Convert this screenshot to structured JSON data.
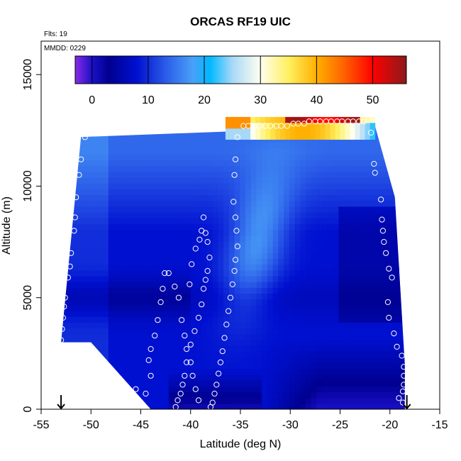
{
  "chart_data": {
    "type": "heatmap",
    "title": "ORCAS RF19 UIC",
    "flights_label": "Flts: 19",
    "date_label": "MMDD: 0229",
    "xlabel": "Latitude (deg N)",
    "ylabel": "Altitude (m)",
    "xlim": [
      -55,
      -15
    ],
    "ylim": [
      0,
      16500
    ],
    "x_ticks": [
      -55,
      -50,
      -45,
      -40,
      -35,
      -30,
      -25,
      -20,
      -15
    ],
    "y_ticks": [
      0,
      5000,
      10000,
      15000
    ],
    "colorbar": {
      "range": [
        -3,
        56
      ],
      "ticks": [
        0,
        10,
        20,
        30,
        40,
        50
      ],
      "stops": [
        {
          "v": -3,
          "c": "#8a2be2"
        },
        {
          "v": 0,
          "c": "#1a10c8"
        },
        {
          "v": 3,
          "c": "#000090"
        },
        {
          "v": 8,
          "c": "#0010d0"
        },
        {
          "v": 13,
          "c": "#2a5ae8"
        },
        {
          "v": 18,
          "c": "#4aa0f8"
        },
        {
          "v": 21,
          "c": "#00b8ff"
        },
        {
          "v": 25,
          "c": "#a8d8f8"
        },
        {
          "v": 30,
          "c": "#fffff0"
        },
        {
          "v": 35,
          "c": "#fff060"
        },
        {
          "v": 40,
          "c": "#ffb000"
        },
        {
          "v": 45,
          "c": "#ff6000"
        },
        {
          "v": 50,
          "c": "#ff0000"
        },
        {
          "v": 56,
          "c": "#8b1a1a"
        }
      ]
    },
    "field_outline": [
      [
        -53.0,
        3000
      ],
      [
        -51.0,
        12200
      ],
      [
        -21.5,
        12700
      ],
      [
        -19.5,
        9500
      ],
      [
        -18.5,
        2000
      ],
      [
        -18.5,
        0
      ],
      [
        -44.0,
        0
      ],
      [
        -50.0,
        3000
      ]
    ],
    "hot_layer": {
      "lat_range": [
        -36.5,
        -21.5
      ],
      "alt_range": [
        12100,
        13000
      ]
    },
    "profile_points": [
      {
        "name": "profile-52",
        "points": [
          [
            -53.0,
            3100
          ],
          [
            -52.9,
            3600
          ],
          [
            -52.8,
            4100
          ],
          [
            -52.7,
            4600
          ],
          [
            -52.6,
            5000
          ],
          [
            -52.3,
            5900
          ],
          [
            -52.1,
            6400
          ],
          [
            -52.0,
            7000
          ],
          [
            -51.7,
            8000
          ],
          [
            -51.6,
            8600
          ],
          [
            -51.5,
            9500
          ],
          [
            -51.2,
            10500
          ],
          [
            -51.0,
            11200
          ],
          [
            -50.6,
            12200
          ]
        ]
      },
      {
        "name": "profile-42",
        "points": [
          [
            -45.5,
            900
          ],
          [
            -45.2,
            300
          ],
          [
            -44.8,
            200
          ],
          [
            -44.5,
            700
          ],
          [
            -44.0,
            1500
          ],
          [
            -44.2,
            2200
          ],
          [
            -44.0,
            2700
          ],
          [
            -43.6,
            3300
          ],
          [
            -43.3,
            4000
          ],
          [
            -43.0,
            4800
          ],
          [
            -42.8,
            5400
          ],
          [
            -42.6,
            6100
          ],
          [
            -42.2,
            6100
          ],
          [
            -41.6,
            5500
          ],
          [
            -41.2,
            5000
          ],
          [
            -40.9,
            4000
          ],
          [
            -40.6,
            3300
          ],
          [
            -40.4,
            2700
          ],
          [
            -40.0,
            2100
          ],
          [
            -39.8,
            1500
          ],
          [
            -39.5,
            900
          ],
          [
            -39.2,
            400
          ]
        ]
      },
      {
        "name": "profile-38",
        "points": [
          [
            -41.5,
            100
          ],
          [
            -41.3,
            400
          ],
          [
            -41.0,
            700
          ],
          [
            -40.8,
            1100
          ],
          [
            -40.6,
            1500
          ],
          [
            -40.4,
            2100
          ],
          [
            -40.0,
            2900
          ],
          [
            -39.6,
            3500
          ],
          [
            -39.2,
            4100
          ],
          [
            -38.9,
            4700
          ],
          [
            -38.7,
            5400
          ],
          [
            -38.5,
            5800
          ],
          [
            -38.3,
            6200
          ],
          [
            -38.1,
            6800
          ],
          [
            -38.3,
            7500
          ],
          [
            -38.5,
            7900
          ],
          [
            -38.7,
            8600
          ],
          [
            -38.9,
            8000
          ],
          [
            -39.1,
            7600
          ],
          [
            -39.5,
            7200
          ],
          [
            -39.9,
            6500
          ],
          [
            -40.1,
            5600
          ]
        ]
      },
      {
        "name": "profile-36",
        "points": [
          [
            -38.0,
            100
          ],
          [
            -37.8,
            300
          ],
          [
            -37.6,
            700
          ],
          [
            -37.4,
            1100
          ],
          [
            -37.2,
            1600
          ],
          [
            -37.0,
            2100
          ],
          [
            -36.8,
            2600
          ],
          [
            -36.6,
            3200
          ],
          [
            -36.4,
            3800
          ],
          [
            -36.2,
            4400
          ],
          [
            -36.0,
            5000
          ],
          [
            -35.8,
            5600
          ],
          [
            -35.6,
            6200
          ],
          [
            -35.5,
            6700
          ],
          [
            -35.3,
            7300
          ],
          [
            -35.4,
            8000
          ],
          [
            -35.5,
            8600
          ],
          [
            -35.7,
            9300
          ],
          [
            -35.6,
            10500
          ],
          [
            -35.5,
            11200
          ],
          [
            -35.3,
            12200
          ]
        ]
      },
      {
        "name": "profile-19",
        "points": [
          [
            -19.1,
            500
          ],
          [
            -18.7,
            300
          ],
          [
            -18.7,
            800
          ],
          [
            -18.6,
            1100
          ],
          [
            -18.6,
            1500
          ],
          [
            -18.6,
            1900
          ],
          [
            -18.8,
            2400
          ],
          [
            -19.3,
            2800
          ],
          [
            -19.6,
            3400
          ],
          [
            -20.1,
            4100
          ],
          [
            -20.2,
            4800
          ],
          [
            -19.8,
            5900
          ],
          [
            -20.1,
            6300
          ],
          [
            -20.4,
            7000
          ],
          [
            -20.6,
            7500
          ],
          [
            -20.7,
            8000
          ],
          [
            -20.8,
            8500
          ],
          [
            -20.9,
            9400
          ],
          [
            -21.5,
            10600
          ],
          [
            -21.6,
            11000
          ],
          [
            -21.9,
            12400
          ]
        ]
      },
      {
        "name": "profile-top",
        "points": [
          [
            -34.7,
            12700
          ],
          [
            -34.2,
            12700
          ],
          [
            -33.6,
            12700
          ],
          [
            -33.1,
            12700
          ],
          [
            -32.5,
            12700
          ],
          [
            -32.0,
            12700
          ],
          [
            -31.4,
            12700
          ],
          [
            -30.9,
            12700
          ],
          [
            -30.3,
            12700
          ],
          [
            -29.7,
            12800
          ],
          [
            -29.2,
            12800
          ],
          [
            -28.6,
            12800
          ],
          [
            -28.1,
            12900
          ],
          [
            -27.5,
            12900
          ],
          [
            -27.0,
            12900
          ],
          [
            -26.4,
            12900
          ],
          [
            -25.9,
            12900
          ],
          [
            -25.3,
            12900
          ],
          [
            -24.8,
            12900
          ],
          [
            -24.2,
            12900
          ],
          [
            -23.7,
            12900
          ],
          [
            -23.1,
            12900
          ],
          [
            -22.6,
            12900
          ]
        ]
      }
    ],
    "arrows": [
      {
        "name": "start-arrow",
        "lat": -53.0
      },
      {
        "name": "end-arrow",
        "lat": -18.3
      }
    ]
  }
}
